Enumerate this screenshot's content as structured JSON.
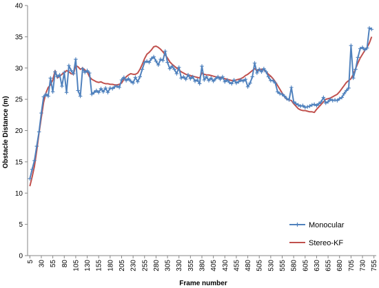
{
  "chart_data": {
    "type": "line",
    "xlabel": "Frame number",
    "ylabel": "Obstacle Distance  (m)",
    "ylim": [
      0,
      40
    ],
    "yticks": [
      0,
      5,
      10,
      15,
      20,
      25,
      30,
      35,
      40
    ],
    "xticks": [
      5,
      30,
      55,
      80,
      105,
      130,
      155,
      180,
      205,
      230,
      255,
      280,
      305,
      330,
      355,
      380,
      405,
      430,
      455,
      480,
      505,
      530,
      555,
      580,
      605,
      630,
      655,
      680,
      705,
      730,
      755
    ],
    "grid": false,
    "legend_position": "bottom-right",
    "series": [
      {
        "name": "Monocular",
        "color": "#4F81BD",
        "marker": "plus",
        "points": [
          [
            5,
            12.3
          ],
          [
            10,
            13.8
          ],
          [
            15,
            15.2
          ],
          [
            20,
            17.5
          ],
          [
            25,
            19.8
          ],
          [
            30,
            22.8
          ],
          [
            35,
            25.4
          ],
          [
            40,
            25.8
          ],
          [
            45,
            25.5
          ],
          [
            50,
            28.4
          ],
          [
            55,
            26.2
          ],
          [
            60,
            29.4
          ],
          [
            65,
            28.6
          ],
          [
            70,
            28.9
          ],
          [
            75,
            27.1
          ],
          [
            80,
            29.3
          ],
          [
            85,
            26.1
          ],
          [
            90,
            30.4
          ],
          [
            95,
            29.6
          ],
          [
            100,
            29.1
          ],
          [
            105,
            31.4
          ],
          [
            110,
            26.4
          ],
          [
            115,
            25.5
          ],
          [
            120,
            29.9
          ],
          [
            125,
            29.3
          ],
          [
            130,
            29.6
          ],
          [
            135,
            29.2
          ],
          [
            140,
            25.8
          ],
          [
            145,
            26.1
          ],
          [
            150,
            26.4
          ],
          [
            155,
            26.1
          ],
          [
            160,
            26.7
          ],
          [
            165,
            26.2
          ],
          [
            170,
            26.8
          ],
          [
            175,
            26.1
          ],
          [
            180,
            26.8
          ],
          [
            185,
            26.7
          ],
          [
            190,
            27.0
          ],
          [
            195,
            27.1
          ],
          [
            200,
            26.9
          ],
          [
            205,
            28.1
          ],
          [
            210,
            28.5
          ],
          [
            215,
            28.0
          ],
          [
            220,
            28.3
          ],
          [
            225,
            27.9
          ],
          [
            230,
            27.6
          ],
          [
            235,
            28.5
          ],
          [
            240,
            27.8
          ],
          [
            245,
            28.6
          ],
          [
            250,
            29.8
          ],
          [
            255,
            30.9
          ],
          [
            260,
            31.1
          ],
          [
            265,
            30.9
          ],
          [
            270,
            31.5
          ],
          [
            275,
            31.8
          ],
          [
            280,
            31.1
          ],
          [
            285,
            30.5
          ],
          [
            290,
            31.4
          ],
          [
            295,
            31.2
          ],
          [
            300,
            32.7
          ],
          [
            305,
            30.9
          ],
          [
            310,
            29.9
          ],
          [
            315,
            30.3
          ],
          [
            320,
            29.8
          ],
          [
            325,
            29.1
          ],
          [
            330,
            30.1
          ],
          [
            335,
            28.4
          ],
          [
            340,
            28.6
          ],
          [
            345,
            28.2
          ],
          [
            350,
            28.9
          ],
          [
            355,
            28.3
          ],
          [
            360,
            28.6
          ],
          [
            365,
            27.9
          ],
          [
            370,
            28.1
          ],
          [
            375,
            27.5
          ],
          [
            380,
            30.3
          ],
          [
            385,
            28.1
          ],
          [
            390,
            28.6
          ],
          [
            395,
            28.0
          ],
          [
            400,
            28.4
          ],
          [
            405,
            27.9
          ],
          [
            410,
            28.3
          ],
          [
            415,
            28.6
          ],
          [
            420,
            28.2
          ],
          [
            425,
            28.6
          ],
          [
            430,
            27.8
          ],
          [
            435,
            28.1
          ],
          [
            440,
            27.7
          ],
          [
            445,
            27.5
          ],
          [
            450,
            28.1
          ],
          [
            455,
            27.6
          ],
          [
            460,
            27.8
          ],
          [
            465,
            28.1
          ],
          [
            470,
            27.9
          ],
          [
            475,
            28.2
          ],
          [
            480,
            27.0
          ],
          [
            485,
            27.6
          ],
          [
            490,
            28.6
          ],
          [
            495,
            30.8
          ],
          [
            500,
            29.2
          ],
          [
            505,
            29.8
          ],
          [
            510,
            29.4
          ],
          [
            515,
            29.9
          ],
          [
            520,
            29.4
          ],
          [
            525,
            28.6
          ],
          [
            530,
            28.0
          ],
          [
            535,
            28.0
          ],
          [
            540,
            27.6
          ],
          [
            545,
            26.2
          ],
          [
            550,
            25.9
          ],
          [
            555,
            25.8
          ],
          [
            560,
            25.5
          ],
          [
            565,
            25.1
          ],
          [
            570,
            24.9
          ],
          [
            575,
            26.9
          ],
          [
            580,
            24.6
          ],
          [
            585,
            24.3
          ],
          [
            590,
            24.1
          ],
          [
            595,
            23.9
          ],
          [
            600,
            24.0
          ],
          [
            605,
            23.7
          ],
          [
            610,
            23.8
          ],
          [
            615,
            23.9
          ],
          [
            620,
            24.1
          ],
          [
            625,
            24.2
          ],
          [
            630,
            24.0
          ],
          [
            635,
            24.3
          ],
          [
            640,
            24.6
          ],
          [
            645,
            25.3
          ],
          [
            650,
            24.4
          ],
          [
            655,
            24.6
          ],
          [
            660,
            25.0
          ],
          [
            665,
            24.8
          ],
          [
            670,
            24.9
          ],
          [
            675,
            24.8
          ],
          [
            680,
            25.1
          ],
          [
            685,
            25.3
          ],
          [
            690,
            25.9
          ],
          [
            695,
            26.4
          ],
          [
            700,
            26.8
          ],
          [
            705,
            33.6
          ],
          [
            710,
            28.4
          ],
          [
            715,
            29.8
          ],
          [
            720,
            31.7
          ],
          [
            725,
            33.1
          ],
          [
            730,
            33.3
          ],
          [
            735,
            32.9
          ],
          [
            740,
            33.2
          ],
          [
            745,
            36.4
          ],
          [
            750,
            36.2
          ]
        ]
      },
      {
        "name": "Stereo-KF",
        "color": "#C0504D",
        "marker": "none",
        "points": [
          [
            5,
            11.1
          ],
          [
            10,
            12.6
          ],
          [
            15,
            14.3
          ],
          [
            20,
            16.8
          ],
          [
            25,
            19.6
          ],
          [
            30,
            22.1
          ],
          [
            35,
            24.5
          ],
          [
            40,
            26.0
          ],
          [
            45,
            26.9
          ],
          [
            50,
            27.3
          ],
          [
            55,
            28.1
          ],
          [
            60,
            29.6
          ],
          [
            65,
            28.4
          ],
          [
            70,
            28.7
          ],
          [
            75,
            29.0
          ],
          [
            80,
            29.3
          ],
          [
            85,
            29.6
          ],
          [
            90,
            29.4
          ],
          [
            95,
            29.1
          ],
          [
            100,
            29.0
          ],
          [
            105,
            30.4
          ],
          [
            110,
            30.2
          ],
          [
            115,
            29.8
          ],
          [
            120,
            30.0
          ],
          [
            125,
            29.7
          ],
          [
            130,
            29.4
          ],
          [
            135,
            28.6
          ],
          [
            140,
            28.2
          ],
          [
            145,
            28.0
          ],
          [
            150,
            27.8
          ],
          [
            155,
            27.7
          ],
          [
            160,
            27.8
          ],
          [
            165,
            27.6
          ],
          [
            170,
            27.5
          ],
          [
            175,
            27.5
          ],
          [
            180,
            27.4
          ],
          [
            185,
            27.4
          ],
          [
            190,
            27.3
          ],
          [
            195,
            27.3
          ],
          [
            200,
            27.4
          ],
          [
            205,
            27.6
          ],
          [
            210,
            28.2
          ],
          [
            215,
            28.6
          ],
          [
            220,
            28.9
          ],
          [
            225,
            29.1
          ],
          [
            230,
            29.0
          ],
          [
            235,
            29.0
          ],
          [
            240,
            29.2
          ],
          [
            245,
            29.8
          ],
          [
            250,
            30.6
          ],
          [
            255,
            31.5
          ],
          [
            260,
            32.2
          ],
          [
            265,
            32.5
          ],
          [
            270,
            32.9
          ],
          [
            275,
            33.4
          ],
          [
            280,
            33.5
          ],
          [
            285,
            33.3
          ],
          [
            290,
            33.0
          ],
          [
            295,
            32.6
          ],
          [
            300,
            32.1
          ],
          [
            305,
            31.6
          ],
          [
            310,
            31.0
          ],
          [
            315,
            30.6
          ],
          [
            320,
            30.3
          ],
          [
            325,
            30.0
          ],
          [
            330,
            29.7
          ],
          [
            335,
            29.4
          ],
          [
            340,
            29.2
          ],
          [
            345,
            29.0
          ],
          [
            350,
            28.9
          ],
          [
            355,
            28.8
          ],
          [
            360,
            28.7
          ],
          [
            365,
            28.6
          ],
          [
            370,
            28.5
          ],
          [
            375,
            28.4
          ],
          [
            380,
            29.2
          ],
          [
            385,
            29.0
          ],
          [
            390,
            28.9
          ],
          [
            395,
            28.9
          ],
          [
            400,
            28.8
          ],
          [
            405,
            28.7
          ],
          [
            410,
            28.6
          ],
          [
            415,
            28.6
          ],
          [
            420,
            28.5
          ],
          [
            425,
            28.4
          ],
          [
            430,
            28.3
          ],
          [
            435,
            28.2
          ],
          [
            440,
            28.1
          ],
          [
            445,
            28.0
          ],
          [
            450,
            28.0
          ],
          [
            455,
            28.1
          ],
          [
            460,
            28.2
          ],
          [
            465,
            28.3
          ],
          [
            470,
            28.5
          ],
          [
            475,
            28.8
          ],
          [
            480,
            29.0
          ],
          [
            485,
            29.3
          ],
          [
            490,
            29.6
          ],
          [
            495,
            29.9
          ],
          [
            500,
            29.6
          ],
          [
            505,
            29.8
          ],
          [
            510,
            29.8
          ],
          [
            515,
            29.7
          ],
          [
            520,
            29.4
          ],
          [
            525,
            29.0
          ],
          [
            530,
            28.7
          ],
          [
            535,
            28.3
          ],
          [
            540,
            27.8
          ],
          [
            545,
            27.2
          ],
          [
            550,
            26.6
          ],
          [
            555,
            26.0
          ],
          [
            560,
            25.4
          ],
          [
            565,
            25.0
          ],
          [
            570,
            24.9
          ],
          [
            575,
            24.8
          ],
          [
            580,
            24.3
          ],
          [
            585,
            23.9
          ],
          [
            590,
            23.5
          ],
          [
            595,
            23.3
          ],
          [
            600,
            23.2
          ],
          [
            605,
            23.2
          ],
          [
            610,
            23.1
          ],
          [
            615,
            23.0
          ],
          [
            620,
            23.0
          ],
          [
            625,
            22.9
          ],
          [
            630,
            23.4
          ],
          [
            635,
            23.8
          ],
          [
            640,
            24.2
          ],
          [
            645,
            24.6
          ],
          [
            650,
            25.0
          ],
          [
            655,
            25.1
          ],
          [
            660,
            25.2
          ],
          [
            665,
            25.4
          ],
          [
            670,
            25.6
          ],
          [
            675,
            25.8
          ],
          [
            680,
            26.2
          ],
          [
            685,
            26.7
          ],
          [
            690,
            27.2
          ],
          [
            695,
            27.7
          ],
          [
            700,
            28.0
          ],
          [
            705,
            28.3
          ],
          [
            710,
            29.0
          ],
          [
            715,
            29.9
          ],
          [
            720,
            30.8
          ],
          [
            725,
            31.6
          ],
          [
            730,
            32.2
          ],
          [
            735,
            32.8
          ],
          [
            740,
            33.3
          ],
          [
            745,
            34.0
          ],
          [
            750,
            35.0
          ]
        ]
      }
    ]
  }
}
